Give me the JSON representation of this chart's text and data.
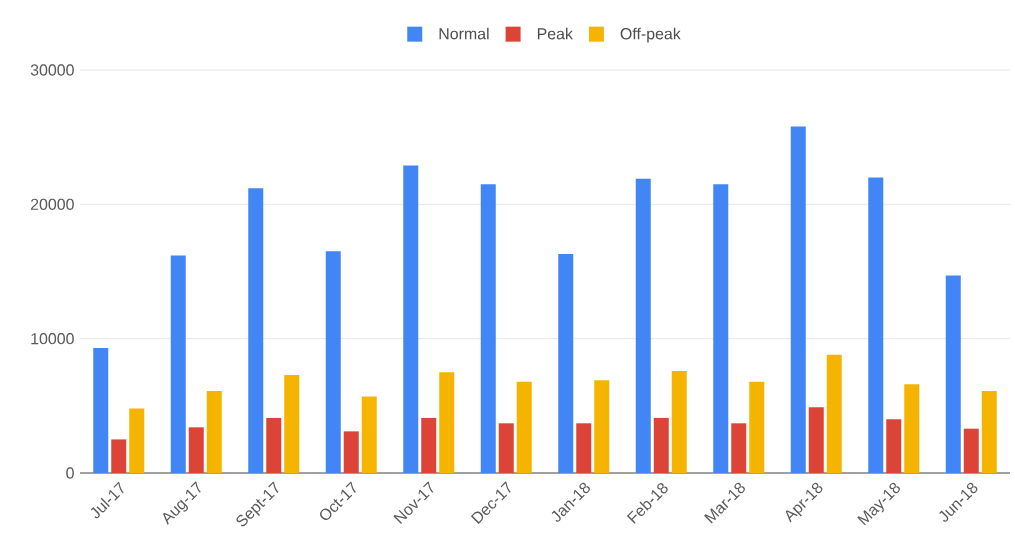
{
  "chart_data": {
    "type": "bar",
    "categories": [
      "Jul-17",
      "Aug-17",
      "Sept-17",
      "Oct-17",
      "Nov-17",
      "Dec-17",
      "Jan-18",
      "Feb-18",
      "Mar-18",
      "Apr-18",
      "May-18",
      "Jun-18"
    ],
    "series": [
      {
        "name": "Normal",
        "color": "#4285f4",
        "values": [
          9300,
          16200,
          21200,
          16500,
          22900,
          21500,
          16300,
          21900,
          21500,
          25800,
          22000,
          14700
        ]
      },
      {
        "name": "Peak",
        "color": "#db4437",
        "values": [
          2500,
          3400,
          4100,
          3100,
          4100,
          3700,
          3700,
          4100,
          3700,
          4900,
          4000,
          3300
        ]
      },
      {
        "name": "Off-peak",
        "color": "#f4b400",
        "values": [
          4800,
          6100,
          7300,
          5700,
          7500,
          6800,
          6900,
          7600,
          6800,
          8800,
          6600,
          6100
        ]
      }
    ],
    "ylim": [
      0,
      30000
    ],
    "yticks": [
      0,
      10000,
      20000,
      30000
    ],
    "grid": "y",
    "legend": "top"
  }
}
